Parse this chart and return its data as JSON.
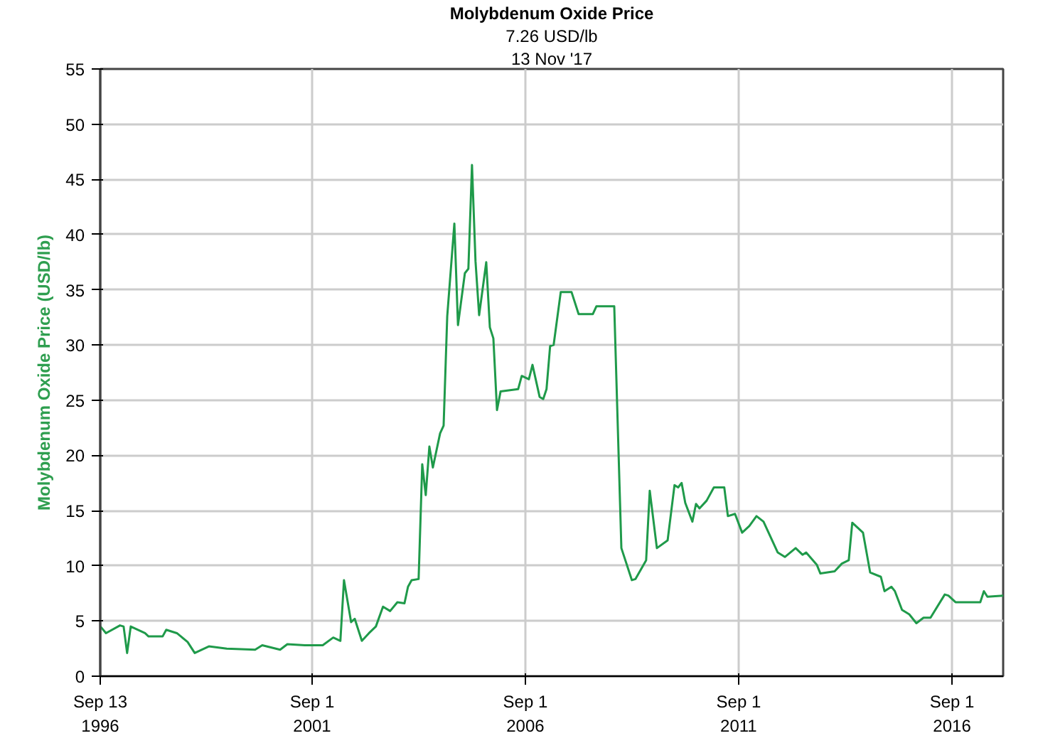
{
  "chart_data": {
    "type": "line",
    "title": "Molybdenum Oxide Price",
    "subtitle": "7.26 USD/lb",
    "annotations": [
      "13 Nov '17"
    ],
    "ylabel": "Molybdenum Oxide Price (USD/lb)",
    "x": [
      "1996-09-15",
      "1996-11",
      "1997-03",
      "1997-04",
      "1997-05",
      "1997-06",
      "1997-10",
      "1997-11",
      "1998-03",
      "1998-04",
      "1998-07",
      "1998-10",
      "1998-12",
      "1999-04",
      "1999-09",
      "2000-05",
      "2000-07",
      "2000-12",
      "2001-02",
      "2001-07",
      "2001-12",
      "2002-03",
      "2002-05",
      "2002-06",
      "2002-08",
      "2002-09",
      "2002-11",
      "2003-01",
      "2003-03",
      "2003-05",
      "2003-07",
      "2003-09",
      "2003-11",
      "2003-12",
      "2004-01",
      "2004-03",
      "2004-04",
      "2004-05",
      "2004-06",
      "2004-07",
      "2004-09",
      "2004-10",
      "2004-11",
      "2005-01",
      "2005-02",
      "2005-04",
      "2005-05",
      "2005-06",
      "2005-07",
      "2005-08",
      "2005-10",
      "2005-11",
      "2005-12",
      "2006-01",
      "2006-02",
      "2006-07",
      "2006-08",
      "2006-10",
      "2006-11",
      "2007-01",
      "2007-02",
      "2007-03",
      "2007-04",
      "2007-05",
      "2007-07",
      "2007-10",
      "2007-12",
      "2008-04",
      "2008-05",
      "2008-10",
      "2008-12",
      "2009-03",
      "2009-04",
      "2009-07",
      "2009-08",
      "2009-10",
      "2010-01",
      "2010-03",
      "2010-04",
      "2010-05",
      "2010-06",
      "2010-08",
      "2010-09",
      "2010-10",
      "2010-12",
      "2011-02",
      "2011-05",
      "2011-06",
      "2011-08",
      "2011-10",
      "2011-12",
      "2012-02",
      "2012-04",
      "2012-08",
      "2012-10",
      "2013-01",
      "2013-03",
      "2013-04",
      "2013-07",
      "2013-08",
      "2013-12",
      "2014-02",
      "2014-04",
      "2014-05",
      "2014-08",
      "2014-10",
      "2015-01",
      "2015-02",
      "2015-04",
      "2015-05",
      "2015-07",
      "2015-09",
      "2015-11",
      "2016-01",
      "2016-03",
      "2016-07",
      "2016-08",
      "2016-10",
      "2017-05",
      "2017-06",
      "2017-07",
      "2017-11-13"
    ],
    "series": [
      {
        "color": "#1f9a4a",
        "values": [
          4.5,
          3.9,
          4.6,
          4.5,
          2.1,
          4.5,
          3.9,
          3.6,
          3.6,
          4.2,
          3.9,
          3.1,
          2.1,
          2.7,
          2.5,
          2.4,
          2.8,
          2.4,
          2.9,
          2.8,
          2.8,
          3.5,
          3.2,
          8.7,
          4.9,
          5.2,
          3.2,
          3.9,
          4.5,
          6.3,
          5.9,
          6.7,
          6.6,
          8.1,
          8.7,
          8.8,
          19.2,
          16.4,
          20.8,
          18.9,
          22.0,
          22.7,
          32.6,
          41.0,
          31.8,
          36.5,
          36.9,
          46.3,
          37.6,
          32.7,
          37.5,
          31.6,
          30.6,
          24.1,
          25.8,
          26.0,
          27.2,
          26.9,
          28.2,
          25.3,
          25.1,
          26.0,
          29.9,
          30.0,
          34.8,
          34.8,
          32.8,
          32.8,
          33.5,
          33.5,
          11.6,
          8.7,
          8.8,
          10.5,
          16.8,
          11.6,
          12.3,
          17.3,
          17.1,
          17.5,
          15.7,
          14.0,
          15.6,
          15.2,
          15.9,
          17.1,
          17.1,
          14.5,
          14.7,
          13.0,
          13.6,
          14.5,
          14.0,
          11.2,
          10.8,
          11.6,
          11.0,
          11.2,
          10.1,
          9.3,
          9.5,
          10.2,
          10.5,
          13.9,
          13.0,
          9.4,
          9.0,
          7.7,
          8.1,
          7.7,
          6.0,
          5.6,
          4.8,
          5.3,
          5.3,
          7.4,
          7.3,
          6.7,
          6.7,
          7.7,
          7.2,
          7.3
        ]
      }
    ],
    "xlim": [
      "1996-09-13",
      "2017-11-13"
    ],
    "xticks": [
      {
        "value": "1996-09-13",
        "label": "Sep 13\n1996"
      },
      {
        "value": "2001-09-01",
        "label": "Sep 1\n2001"
      },
      {
        "value": "2006-09-01",
        "label": "Sep 1\n2006"
      },
      {
        "value": "2011-09-01",
        "label": "Sep 1\n2011"
      },
      {
        "value": "2016-09-01",
        "label": "Sep 1\n2016"
      }
    ],
    "ylim": [
      0,
      55
    ],
    "yticks": [
      0,
      5,
      10,
      15,
      20,
      25,
      30,
      35,
      40,
      45,
      50,
      55
    ],
    "grid": true,
    "line_style": "solid"
  }
}
